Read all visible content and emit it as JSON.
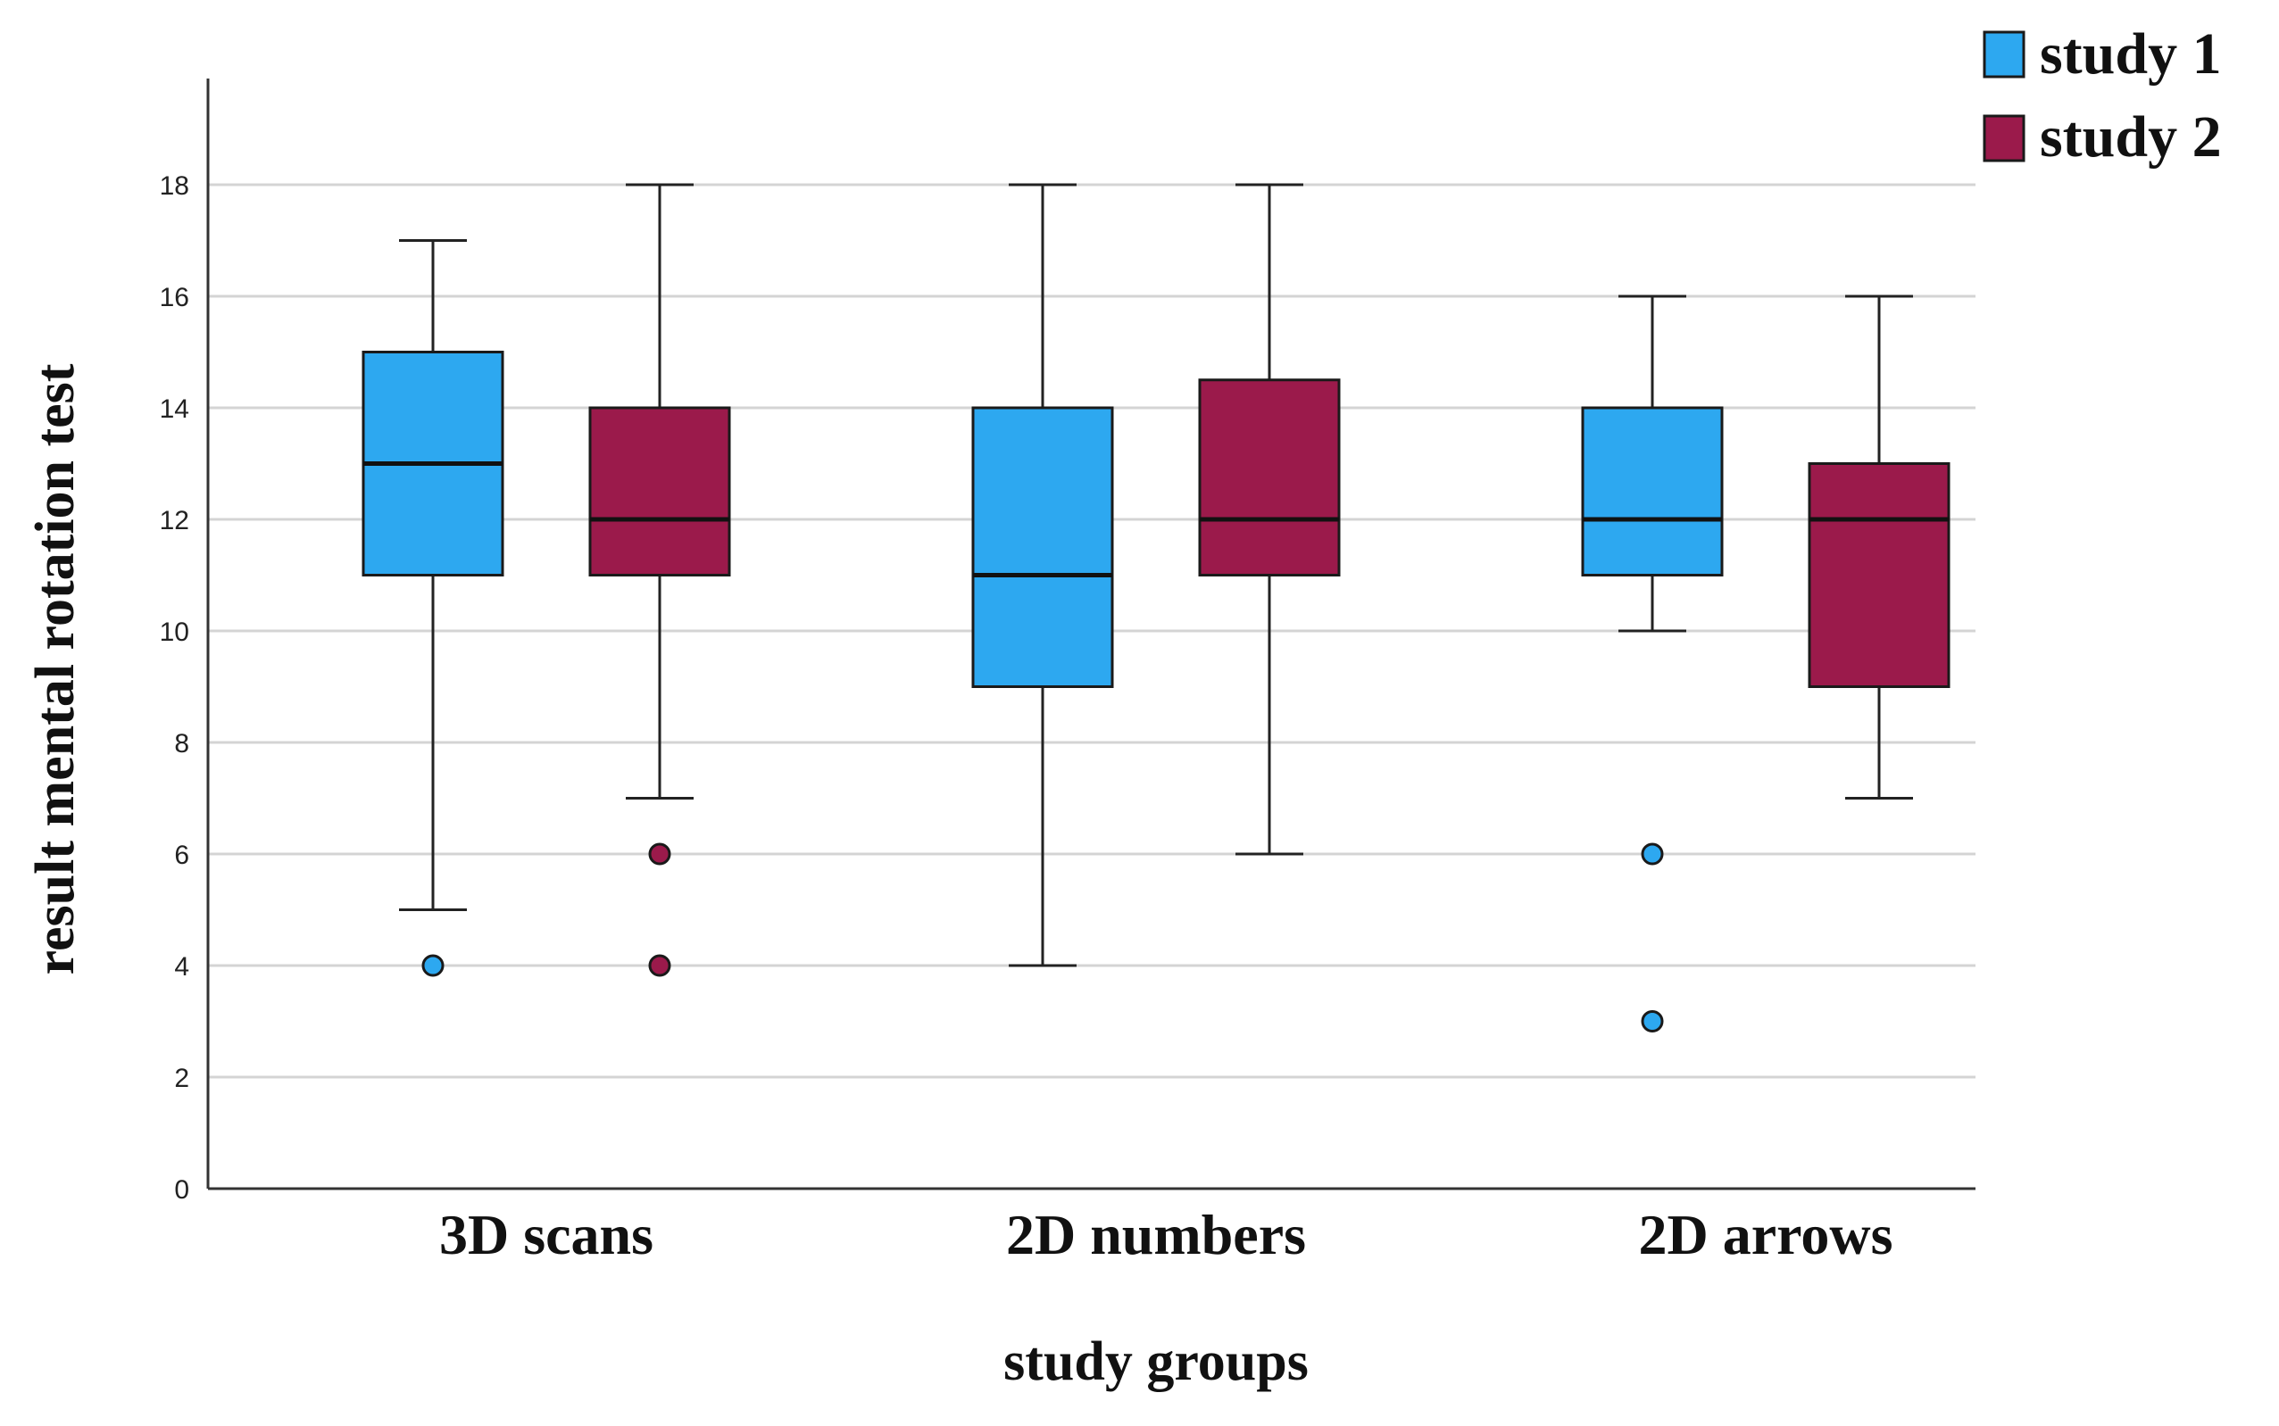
{
  "chart_data": {
    "type": "boxplot",
    "title": "",
    "xlabel": "study groups",
    "ylabel": "result mental rotation test",
    "ylim": [
      0,
      20
    ],
    "yticks": [
      0,
      2,
      4,
      6,
      8,
      10,
      12,
      14,
      16,
      18
    ],
    "grid": true,
    "legend_position": "top-right",
    "categories": [
      "3D scans",
      "2D numbers",
      "2D arrows"
    ],
    "series": [
      {
        "name": "study 1",
        "color": "#2da8f0",
        "boxes": [
          {
            "whisker_low": 5,
            "q1": 11,
            "median": 13,
            "q3": 15,
            "whisker_high": 17,
            "outliers": [
              4
            ]
          },
          {
            "whisker_low": 4,
            "q1": 9,
            "median": 11,
            "q3": 14,
            "whisker_high": 18,
            "outliers": []
          },
          {
            "whisker_low": 10,
            "q1": 11,
            "median": 12,
            "q3": 14,
            "whisker_high": 16,
            "outliers": [
              6,
              3
            ]
          }
        ]
      },
      {
        "name": "study 2",
        "color": "#9b1a4b",
        "boxes": [
          {
            "whisker_low": 7,
            "q1": 11,
            "median": 12,
            "q3": 14,
            "whisker_high": 18,
            "outliers": [
              6,
              4
            ]
          },
          {
            "whisker_low": 6,
            "q1": 11,
            "median": 12,
            "q3": 14.5,
            "whisker_high": 18,
            "outliers": []
          },
          {
            "whisker_low": 7,
            "q1": 9,
            "median": 12,
            "q3": 13,
            "whisker_high": 16,
            "outliers": []
          }
        ]
      }
    ]
  }
}
